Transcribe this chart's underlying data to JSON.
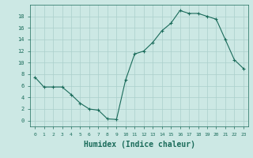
{
  "x": [
    0,
    1,
    2,
    3,
    4,
    5,
    6,
    7,
    8,
    9,
    10,
    11,
    12,
    13,
    14,
    15,
    16,
    17,
    18,
    19,
    20,
    21,
    22,
    23
  ],
  "y": [
    7.5,
    5.8,
    5.8,
    5.8,
    4.5,
    3.0,
    2.0,
    1.8,
    0.3,
    0.2,
    7.0,
    11.5,
    12.0,
    13.5,
    15.5,
    16.8,
    19.0,
    18.5,
    18.5,
    18.0,
    17.5,
    14.0,
    10.5,
    9.0
  ],
  "line_color": "#1a6b5a",
  "marker": "+",
  "marker_size": 3,
  "bg_color": "#cce8e4",
  "grid_color": "#aacfcb",
  "xlabel": "Humidex (Indice chaleur)",
  "xlabel_fontsize": 7,
  "tick_label_color": "#1a6b5a",
  "ylim": [
    -1,
    20
  ],
  "xlim": [
    -0.5,
    23.5
  ],
  "yticks": [
    0,
    2,
    4,
    6,
    8,
    10,
    12,
    14,
    16,
    18
  ],
  "xticks": [
    0,
    1,
    2,
    3,
    4,
    5,
    6,
    7,
    8,
    9,
    10,
    11,
    12,
    13,
    14,
    15,
    16,
    17,
    18,
    19,
    20,
    21,
    22,
    23
  ]
}
